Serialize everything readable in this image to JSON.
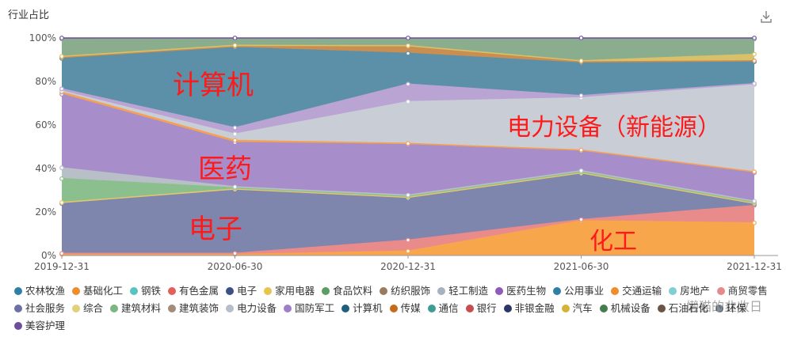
{
  "title": "行业占比",
  "download_icon": "download-icon",
  "watermark": "懒猫的韭收日",
  "colors": {
    "annotation": "#ff1a1a"
  },
  "annotations": [
    "计算机",
    "电力设备（新能源）",
    "医药",
    "电子",
    "化工"
  ],
  "chart_data": {
    "type": "area",
    "stacked": true,
    "x": [
      "2019-12-31",
      "2020-06-30",
      "2020-12-31",
      "2021-06-30",
      "2021-12-31"
    ],
    "yticks": [
      "0%",
      "20%",
      "40%",
      "60%",
      "80%",
      "100%"
    ],
    "ylim": [
      0,
      100
    ],
    "grid": false,
    "legend_position": "bottom",
    "series": [
      {
        "name": "化工",
        "color": "#f7a64c",
        "values": [
          0.5,
          0.5,
          2,
          16,
          15
        ]
      },
      {
        "name": "有色金属",
        "color": "#e98b8b",
        "values": [
          0.5,
          0.5,
          5,
          0.5,
          8
        ]
      },
      {
        "name": "电子",
        "color": "#7f86ad",
        "values": [
          23,
          30,
          19,
          21,
          0.5
        ]
      },
      {
        "name": "家用电器",
        "color": "#e4c66a",
        "values": [
          0.5,
          0.5,
          0.5,
          0.5,
          0.5
        ]
      },
      {
        "name": "建筑材料",
        "color": "#8cbf8e",
        "values": [
          11,
          0.5,
          0.5,
          0.5,
          0.5
        ]
      },
      {
        "name": "轻工制造",
        "color": "#b8bfc8",
        "values": [
          5,
          0.5,
          0.5,
          0.5,
          0.5
        ]
      },
      {
        "name": "医药生物",
        "color": "#a78ecb",
        "values": [
          34,
          21,
          23,
          9,
          13
        ]
      },
      {
        "name": "公用事业",
        "color": "#f6a054",
        "values": [
          1,
          1,
          0.5,
          0.5,
          0.5
        ]
      },
      {
        "name": "电力设备",
        "color": "#c9ced6",
        "values": [
          0.5,
          3,
          19,
          24,
          40
        ]
      },
      {
        "name": "国防军工",
        "color": "#b9a4d3",
        "values": [
          1,
          3,
          8,
          1,
          0.5
        ]
      },
      {
        "name": "计算机",
        "color": "#5b90a8",
        "values": [
          14,
          38,
          14,
          15,
          10
        ]
      },
      {
        "name": "传媒",
        "color": "#c98e50",
        "values": [
          0.5,
          0.5,
          3,
          0.5,
          0.5
        ]
      },
      {
        "name": "汽车",
        "color": "#d9c06a",
        "values": [
          0.5,
          0.5,
          0.5,
          0.5,
          3
        ]
      },
      {
        "name": "食品饮料",
        "color": "#8aad8d",
        "values": [
          8,
          3,
          3,
          10,
          7
        ]
      },
      {
        "name": "美容护理",
        "color": "#6d4e9a",
        "values": [
          0.5,
          0.5,
          0.5,
          0.5,
          0.5
        ]
      }
    ],
    "legend": [
      {
        "name": "农林牧渔",
        "color": "#2f7fa5"
      },
      {
        "name": "基础化工",
        "color": "#f08c2b"
      },
      {
        "name": "钢铁",
        "color": "#59c3c0"
      },
      {
        "name": "有色金属",
        "color": "#e0605c"
      },
      {
        "name": "电子",
        "color": "#3d4f86"
      },
      {
        "name": "家用电器",
        "color": "#e8c34d"
      },
      {
        "name": "食品饮料",
        "color": "#5c9d66"
      },
      {
        "name": "纺织服饰",
        "color": "#9b7b60"
      },
      {
        "name": "轻工制造",
        "color": "#a5b3c0"
      },
      {
        "name": "医药生物",
        "color": "#8e5bb8"
      },
      {
        "name": "公用事业",
        "color": "#2f7fa5"
      },
      {
        "name": "交通运输",
        "color": "#f08c2b"
      },
      {
        "name": "房地产",
        "color": "#7fd0cf"
      },
      {
        "name": "商贸零售",
        "color": "#e48a8a"
      },
      {
        "name": "社会服务",
        "color": "#6b71a6"
      },
      {
        "name": "综合",
        "color": "#e4cf7b"
      },
      {
        "name": "建筑材料",
        "color": "#7cb680"
      },
      {
        "name": "建筑装饰",
        "color": "#a38c7a"
      },
      {
        "name": "电力设备",
        "color": "#b6bec9"
      },
      {
        "name": "国防军工",
        "color": "#a07fc9"
      },
      {
        "name": "计算机",
        "color": "#1e5f7e"
      },
      {
        "name": "传媒",
        "color": "#c66b18"
      },
      {
        "name": "通信",
        "color": "#3e9c97"
      },
      {
        "name": "银行",
        "color": "#c94d4d"
      },
      {
        "name": "非银金融",
        "color": "#2b3766"
      },
      {
        "name": "汽车",
        "color": "#d6b236"
      },
      {
        "name": "机械设备",
        "color": "#467d4c"
      },
      {
        "name": "石油石化",
        "color": "#6b5443"
      },
      {
        "name": "环保",
        "color": "#838d97"
      },
      {
        "name": "美容护理",
        "color": "#6d4e9a"
      }
    ]
  }
}
